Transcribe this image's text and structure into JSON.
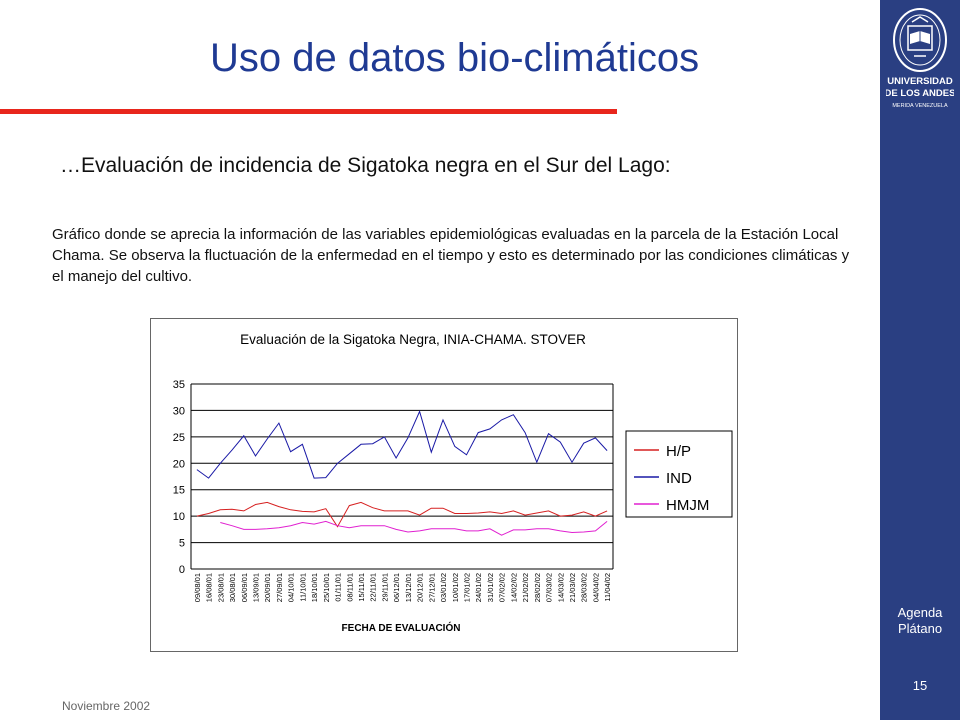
{
  "slide": {
    "title": "Uso de datos bio-climáticos",
    "subtitle": "…Evaluación de incidencia de Sigatoka negra en el Sur del Lago:",
    "description": "Gráfico donde se aprecia la información de las variables epidemiológicas evaluadas en la parcela de la Estación Local Chama. Se observa la fluctuación de la enfermedad en el tiempo y esto es determinado por las condiciones climáticas y el manejo del cultivo.",
    "footer_date": "Noviembre 2002",
    "page_number": "15"
  },
  "sidebar": {
    "logo": {
      "icon": "university-seal-icon",
      "line1": "UNIVERSIDAD",
      "line2": "DE LOS ANDES",
      "line3": "MERIDA VENEZUELA"
    },
    "nav": [
      "Agenda",
      "Plátano"
    ]
  },
  "colors": {
    "sidebar": "#2a3f82",
    "title": "#1f3a93",
    "rule": "#e8261c",
    "hp": "#d62020",
    "ind": "#1a1aa6",
    "hmjm": "#e020d0"
  },
  "chart_data": {
    "type": "line",
    "title": "Evaluación de la Sigatoka Negra, INIA-CHAMA. STOVER",
    "xlabel": "FECHA DE EVALUACIÓN",
    "ylabel": "",
    "ylim": [
      0,
      35
    ],
    "yticks": [
      0,
      5,
      10,
      15,
      20,
      25,
      30,
      35
    ],
    "grid": "horizontal",
    "legend_position": "right",
    "categories": [
      "09/08/01",
      "16/08/01",
      "23/08/01",
      "30/08/01",
      "06/09/01",
      "13/09/01",
      "20/09/01",
      "27/09/01",
      "04/10/01",
      "11/10/01",
      "18/10/01",
      "25/10/01",
      "01/11/01",
      "08/11/01",
      "15/11/01",
      "22/11/01",
      "29/11/01",
      "06/12/01",
      "13/12/01",
      "20/12/01",
      "27/12/01",
      "03/01/02",
      "10/01/02",
      "17/01/02",
      "24/01/02",
      "31/01/02",
      "07/02/02",
      "14/02/02",
      "21/02/02",
      "28/02/02",
      "07/03/02",
      "14/03/02",
      "21/03/02",
      "28/03/02",
      "04/04/02",
      "11/04/02"
    ],
    "tick_labels_shown": [
      "09/08/01",
      "16/08/01",
      "23/08/01",
      "30/08/01",
      "06/09/01",
      "13/09/01",
      "20/09/01",
      "27/09/01",
      "04/10/01",
      "11/10/01",
      "18/10/01",
      "25/10/01",
      "01/11/01",
      "08/11/01",
      "15/11/01",
      "22/11/01",
      "29/11/01",
      "06/12/01",
      "13/12/01",
      "20/12/01",
      "27/12/01",
      "03/01/02",
      "10/01/02",
      "17/01/02",
      "24/01/02",
      "31/01/02",
      "07/02/02",
      "14/02/02",
      "21/02/02",
      "28/02/02",
      "07/03/02",
      "14/03/02",
      "21/03/02",
      "28/03/02",
      "04/04/02",
      "11/04/02"
    ],
    "series": [
      {
        "name": "H/P",
        "color": "#d62020",
        "values": [
          10,
          10.5,
          11.2,
          11.3,
          11,
          12.2,
          12.6,
          11.8,
          11.2,
          10.9,
          10.8,
          11.4,
          8,
          12,
          12.6,
          11.6,
          11,
          11,
          11,
          10.2,
          11.5,
          11.5,
          10.5,
          10.5,
          10.6,
          10.8,
          10.5,
          11,
          10.2,
          10.6,
          11,
          10,
          10.2,
          10.8,
          10,
          11
        ]
      },
      {
        "name": "IND",
        "color": "#1a1aa6",
        "values": [
          18.8,
          17.2,
          20,
          22.5,
          25.2,
          21.4,
          24.6,
          27.6,
          22.2,
          23.6,
          17.2,
          17.3,
          20,
          21.8,
          23.6,
          23.7,
          25,
          21,
          24.8,
          29.8,
          22.1,
          28.2,
          23.2,
          21.6,
          25.8,
          26.5,
          28.2,
          29.2,
          25.8,
          20.2,
          25.6,
          24,
          20.2,
          23.8,
          24.8,
          22.4
        ]
      },
      {
        "name": "HMJM",
        "color": "#e020d0",
        "values": [
          null,
          null,
          8.8,
          8.2,
          7.5,
          7.5,
          7.6,
          7.8,
          8.2,
          8.8,
          8.5,
          9,
          8.2,
          7.8,
          8.2,
          8.2,
          8.2,
          7.5,
          7,
          7.2,
          7.6,
          7.6,
          7.6,
          7.2,
          7.2,
          7.6,
          6.4,
          7.4,
          7.4,
          7.6,
          7.6,
          7.2,
          6.9,
          7,
          7.2,
          9
        ]
      }
    ]
  }
}
